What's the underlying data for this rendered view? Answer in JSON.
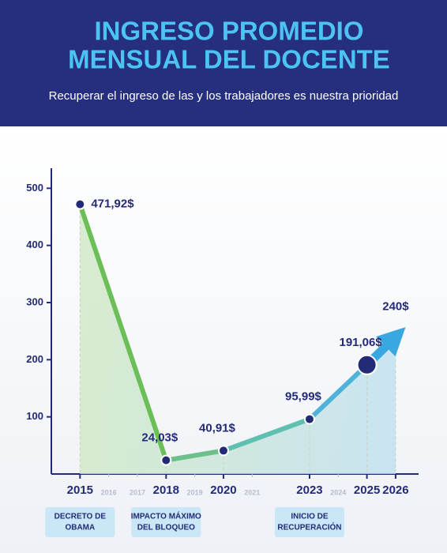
{
  "chart_data": {
    "type": "line",
    "title": [
      "INGRESO PROMEDIO",
      "MENSUAL DEL DOCENTE"
    ],
    "subtitle": "Recuperar el ingreso de las y los trabajadores es nuestra prioridad",
    "x": [
      2015,
      2018,
      2020,
      2023,
      2025,
      2026
    ],
    "values": [
      471.92,
      24.03,
      40.91,
      95.99,
      191.06,
      240
    ],
    "value_labels": [
      "471,92$",
      "24,03$",
      "40,91$",
      "95,99$",
      "191,06$",
      "240$"
    ],
    "segment_colors": [
      "#6cbf57",
      "#6cc08a",
      "#5fbfb0",
      "#4fb3d9",
      "#3aa8e0"
    ],
    "point_color": "#232a78",
    "xlim": [
      2014,
      2026.8
    ],
    "xticks": [
      2015,
      2018,
      2020,
      2023,
      2025,
      2026
    ],
    "minor_xticks": [
      2016,
      2017,
      2019,
      2021,
      2024
    ],
    "ylim": [
      0,
      535
    ],
    "yticks": [
      100,
      200,
      300,
      400,
      500
    ],
    "annotations": [
      {
        "x": 2015,
        "text": [
          "DECRETO DE",
          "OBAMA"
        ]
      },
      {
        "x": 2018,
        "text": [
          "IMPACTO MÁXIMO",
          "DEL BLOQUEO"
        ]
      },
      {
        "x": 2023,
        "text": [
          "INICIO DE",
          "RECUPERACIÓN"
        ]
      }
    ]
  }
}
